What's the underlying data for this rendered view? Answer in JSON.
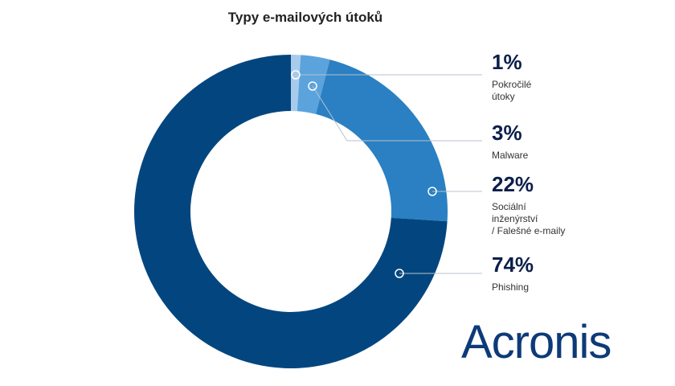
{
  "chart_data": {
    "type": "donut",
    "title": "Typy e-mailových útoků",
    "categories": [
      "Pokročilé\nútoky",
      "Malware",
      "Sociální\ninženýrství\n/ Falešné e-maily",
      "Phishing"
    ],
    "values": [
      1,
      3,
      22,
      74
    ],
    "value_labels": [
      "1%",
      "3%",
      "22%",
      "74%"
    ],
    "colors": [
      "#a9cbeb",
      "#5ba3dc",
      "#2a80c2",
      "#03467f"
    ]
  },
  "logo": "Acronis"
}
